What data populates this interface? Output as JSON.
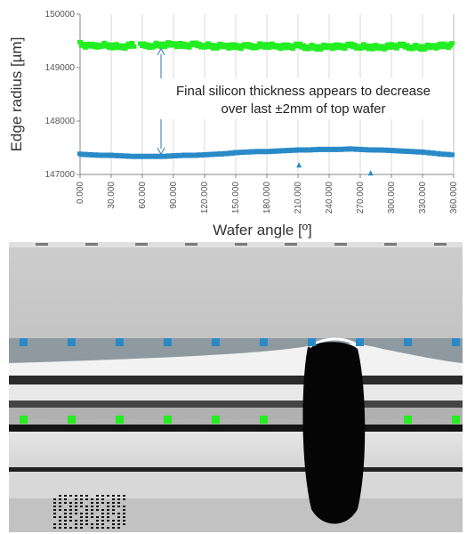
{
  "chart_data": {
    "type": "scatter",
    "xlabel": "Wafer angle [º]",
    "ylabel": "Edge radius [µm]",
    "xlim": [
      0,
      360
    ],
    "ylim": [
      147000,
      150000
    ],
    "x_ticks": [
      "0.000",
      "30.000",
      "60.000",
      "90.000",
      "120.000",
      "150.000",
      "180.000",
      "210.000",
      "240.000",
      "270.000",
      "300.000",
      "330.000",
      "360.000"
    ],
    "y_ticks": [
      "147000",
      "148000",
      "149000",
      "150000"
    ],
    "grid": "vertical",
    "annotation": [
      "Final silicon thickness appears to decrease",
      "over last ±2mm of top wafer"
    ],
    "arrow_at_x": 78,
    "gap_in_green": [
      53,
      58
    ],
    "series": [
      {
        "color": "#22ee22",
        "marker": "square",
        "x": [
          0,
          10,
          20,
          30,
          40,
          50,
          60,
          70,
          80,
          90,
          100,
          110,
          120,
          130,
          140,
          150,
          160,
          170,
          180,
          190,
          200,
          210,
          220,
          230,
          240,
          250,
          260,
          270,
          280,
          290,
          300,
          310,
          320,
          330,
          340,
          350,
          360
        ],
        "y": [
          149430,
          149390,
          149420,
          149400,
          149380,
          149410,
          149400,
          149410,
          149420,
          149430,
          149400,
          149420,
          149410,
          149390,
          149400,
          149380,
          149390,
          149400,
          149410,
          149390,
          149380,
          149400,
          149380,
          149370,
          149390,
          149380,
          149400,
          149390,
          149380,
          149370,
          149390,
          149400,
          149380,
          149370,
          149390,
          149400,
          149410
        ]
      },
      {
        "color": "#2a8ac8",
        "marker": "square",
        "x": [
          0,
          10,
          20,
          30,
          40,
          50,
          60,
          70,
          80,
          90,
          100,
          110,
          120,
          130,
          140,
          150,
          160,
          170,
          180,
          190,
          200,
          210,
          220,
          230,
          240,
          250,
          260,
          270,
          280,
          290,
          300,
          310,
          320,
          330,
          340,
          350,
          360
        ],
        "y": [
          147370,
          147360,
          147350,
          147350,
          147340,
          147330,
          147330,
          147330,
          147330,
          147340,
          147350,
          147350,
          147360,
          147370,
          147380,
          147400,
          147410,
          147420,
          147420,
          147430,
          147440,
          147450,
          147450,
          147460,
          147460,
          147460,
          147470,
          147460,
          147450,
          147450,
          147440,
          147430,
          147420,
          147410,
          147390,
          147370,
          147360
        ]
      }
    ],
    "outliers": [
      {
        "x": 211,
        "y": 147180,
        "color": "#2a8ac8",
        "marker": "triangle"
      },
      {
        "x": 280,
        "y": 147030,
        "color": "#2a8ac8",
        "marker": "triangle"
      }
    ]
  },
  "micrograph": {
    "blue_marker_color": "#2a8ac8",
    "green_marker_color": "#22ee22",
    "blue_marker_count": 10,
    "green_marker_count": 10
  }
}
